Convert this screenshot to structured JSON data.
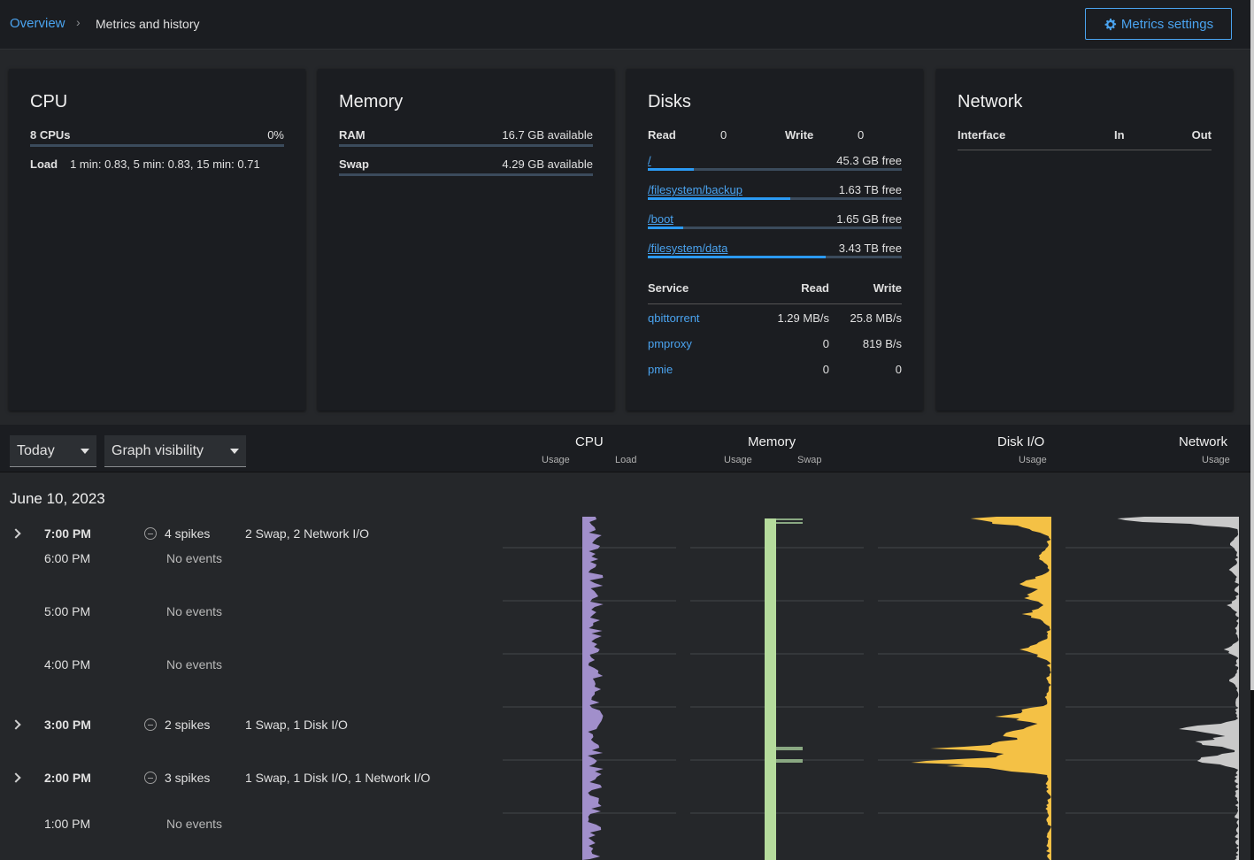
{
  "breadcrumb": {
    "overview": "Overview",
    "current": "Metrics and history"
  },
  "header": {
    "settings_label": "Metrics settings"
  },
  "cpu": {
    "title": "CPU",
    "cpus_label": "8 CPUs",
    "usage": "0%",
    "usage_fraction": 0.0,
    "load_label": "Load",
    "load_value": "1 min: 0.83, 5 min: 0.83, 15 min: 0.71"
  },
  "memory": {
    "title": "Memory",
    "ram_label": "RAM",
    "ram_value": "16.7 GB available",
    "ram_used_fraction": 0.0,
    "swap_label": "Swap",
    "swap_value": "4.29 GB available",
    "swap_used_fraction": 0.0
  },
  "disks": {
    "title": "Disks",
    "read_label": "Read",
    "read_value": "0",
    "write_label": "Write",
    "write_value": "0",
    "mounts": [
      {
        "name": "/",
        "free": "45.3 GB free",
        "used_fraction": 0.18
      },
      {
        "name": "/filesystem/backup",
        "free": "1.63 TB free",
        "used_fraction": 0.56
      },
      {
        "name": "/boot",
        "free": "1.65 GB free",
        "used_fraction": 0.14
      },
      {
        "name": "/filesystem/data",
        "free": "3.43 TB free",
        "used_fraction": 0.7
      }
    ],
    "service_header": {
      "service": "Service",
      "read": "Read",
      "write": "Write"
    },
    "services": [
      {
        "name": "qbittorrent",
        "read": "1.29 MB/s",
        "write": "25.8 MB/s"
      },
      {
        "name": "pmproxy",
        "read": "0",
        "write": "819 B/s"
      },
      {
        "name": "pmie",
        "read": "0",
        "write": "0"
      }
    ]
  },
  "network": {
    "title": "Network",
    "col_interface": "Interface",
    "col_in": "In",
    "col_out": "Out"
  },
  "toolbar": {
    "range_label": "Today",
    "visibility_label": "Graph visibility",
    "columns": [
      {
        "title": "CPU",
        "subs": [
          "Usage",
          "Load"
        ]
      },
      {
        "title": "Memory",
        "subs": [
          "Usage",
          "Swap"
        ]
      },
      {
        "title": "Disk I/O",
        "subs": [
          "Usage"
        ]
      },
      {
        "title": "Network",
        "subs": [
          "Usage"
        ]
      }
    ]
  },
  "timeline": {
    "date": "June 10, 2023",
    "hours": [
      {
        "time": "7:00 PM",
        "expandable": true,
        "spikes": "4 spikes",
        "detail": "2 Swap, 2 Network I/O"
      },
      {
        "time": "6:00 PM",
        "expandable": false,
        "events": "No events"
      },
      {
        "time": "5:00 PM",
        "expandable": false,
        "events": "No events"
      },
      {
        "time": "4:00 PM",
        "expandable": false,
        "events": "No events"
      },
      {
        "time": "3:00 PM",
        "expandable": true,
        "spikes": "2 spikes",
        "detail": "1 Swap, 1 Disk I/O"
      },
      {
        "time": "2:00 PM",
        "expandable": true,
        "spikes": "3 spikes",
        "detail": "1 Swap, 1 Disk I/O, 1 Network I/O"
      },
      {
        "time": "1:00 PM",
        "expandable": false,
        "events": "No events"
      }
    ]
  },
  "colors": {
    "accent": "#4aa3ef",
    "cpu": "#a18fcb",
    "memory": "#b5db9c",
    "swap": "#8aa882",
    "disk": "#f4c145",
    "network": "#c9c9c9"
  }
}
